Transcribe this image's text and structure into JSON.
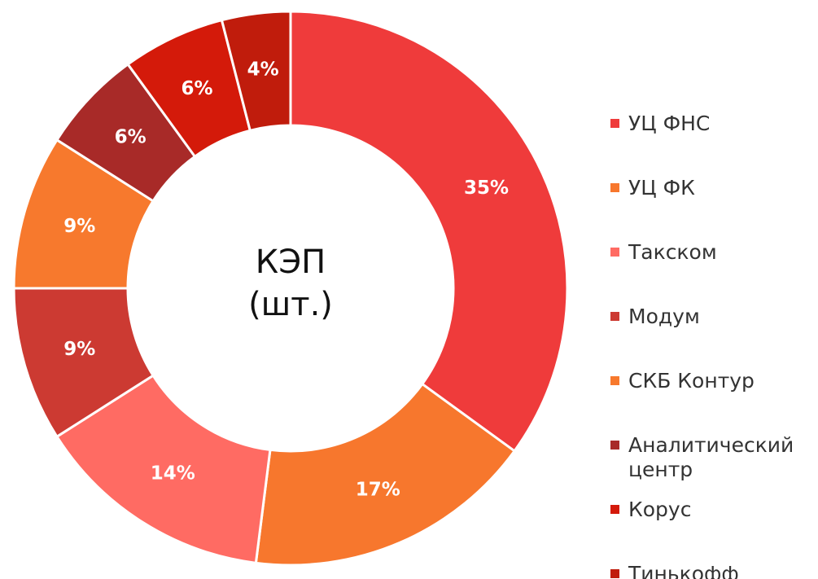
{
  "chart_data": {
    "type": "donut",
    "title_lines": [
      "КЭП",
      "(шт.)"
    ],
    "categories": [
      "УЦ ФНС",
      "УЦ ФК",
      "Такском",
      "Модум",
      "СКБ Контур",
      "Аналитический центр",
      "Корус",
      "Тинькофф"
    ],
    "values": [
      35,
      17,
      14,
      9,
      9,
      6,
      6,
      4
    ],
    "value_labels": [
      "35%",
      "17%",
      "14%",
      "9%",
      "9%",
      "6%",
      "6%",
      "4%"
    ],
    "colors": [
      "#ef3b3b",
      "#f7772d",
      "#ff6b63",
      "#cc3a32",
      "#f7792d",
      "#a82a28",
      "#d41a0a",
      "#c01c0c"
    ],
    "legend": "right"
  }
}
